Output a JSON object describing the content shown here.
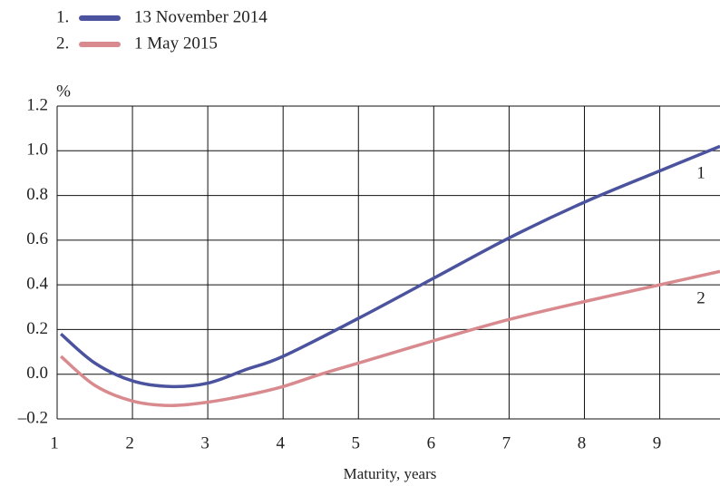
{
  "chart_data": {
    "type": "line",
    "legend_numbers": [
      "1.",
      "2."
    ],
    "series": [
      {
        "name": "13 November 2014",
        "color": "#4b539e",
        "label": "1",
        "x": [
          1.05,
          1.5,
          2,
          2.5,
          3,
          3.5,
          4,
          5,
          6,
          7,
          8,
          9,
          9.8
        ],
        "values": [
          0.18,
          0.05,
          -0.03,
          -0.055,
          -0.04,
          0.02,
          0.08,
          0.25,
          0.43,
          0.61,
          0.77,
          0.91,
          1.02
        ]
      },
      {
        "name": "1 May 2015",
        "color": "#d98a8e",
        "label": "2",
        "x": [
          1.05,
          1.5,
          2,
          2.5,
          3,
          3.5,
          4,
          4.5,
          5,
          6,
          7,
          8,
          9,
          9.8
        ],
        "values": [
          0.08,
          -0.05,
          -0.12,
          -0.14,
          -0.125,
          -0.095,
          -0.055,
          0,
          0.05,
          0.15,
          0.245,
          0.325,
          0.4,
          0.46
        ]
      }
    ],
    "y_label": "%",
    "x_label": "Maturity, years",
    "xlim": [
      1,
      9.8
    ],
    "xticks": [
      1,
      2,
      3,
      4,
      5,
      6,
      7,
      8,
      9
    ],
    "ylim": [
      -0.2,
      1.2
    ],
    "yticks": [
      {
        "value": -0.2,
        "label": "–0.2"
      },
      {
        "value": 0,
        "label": "0.0"
      },
      0.2,
      0.4,
      0.6,
      0.8,
      {
        "value": 1,
        "label": "1.0"
      },
      1.2
    ],
    "grid": true
  }
}
